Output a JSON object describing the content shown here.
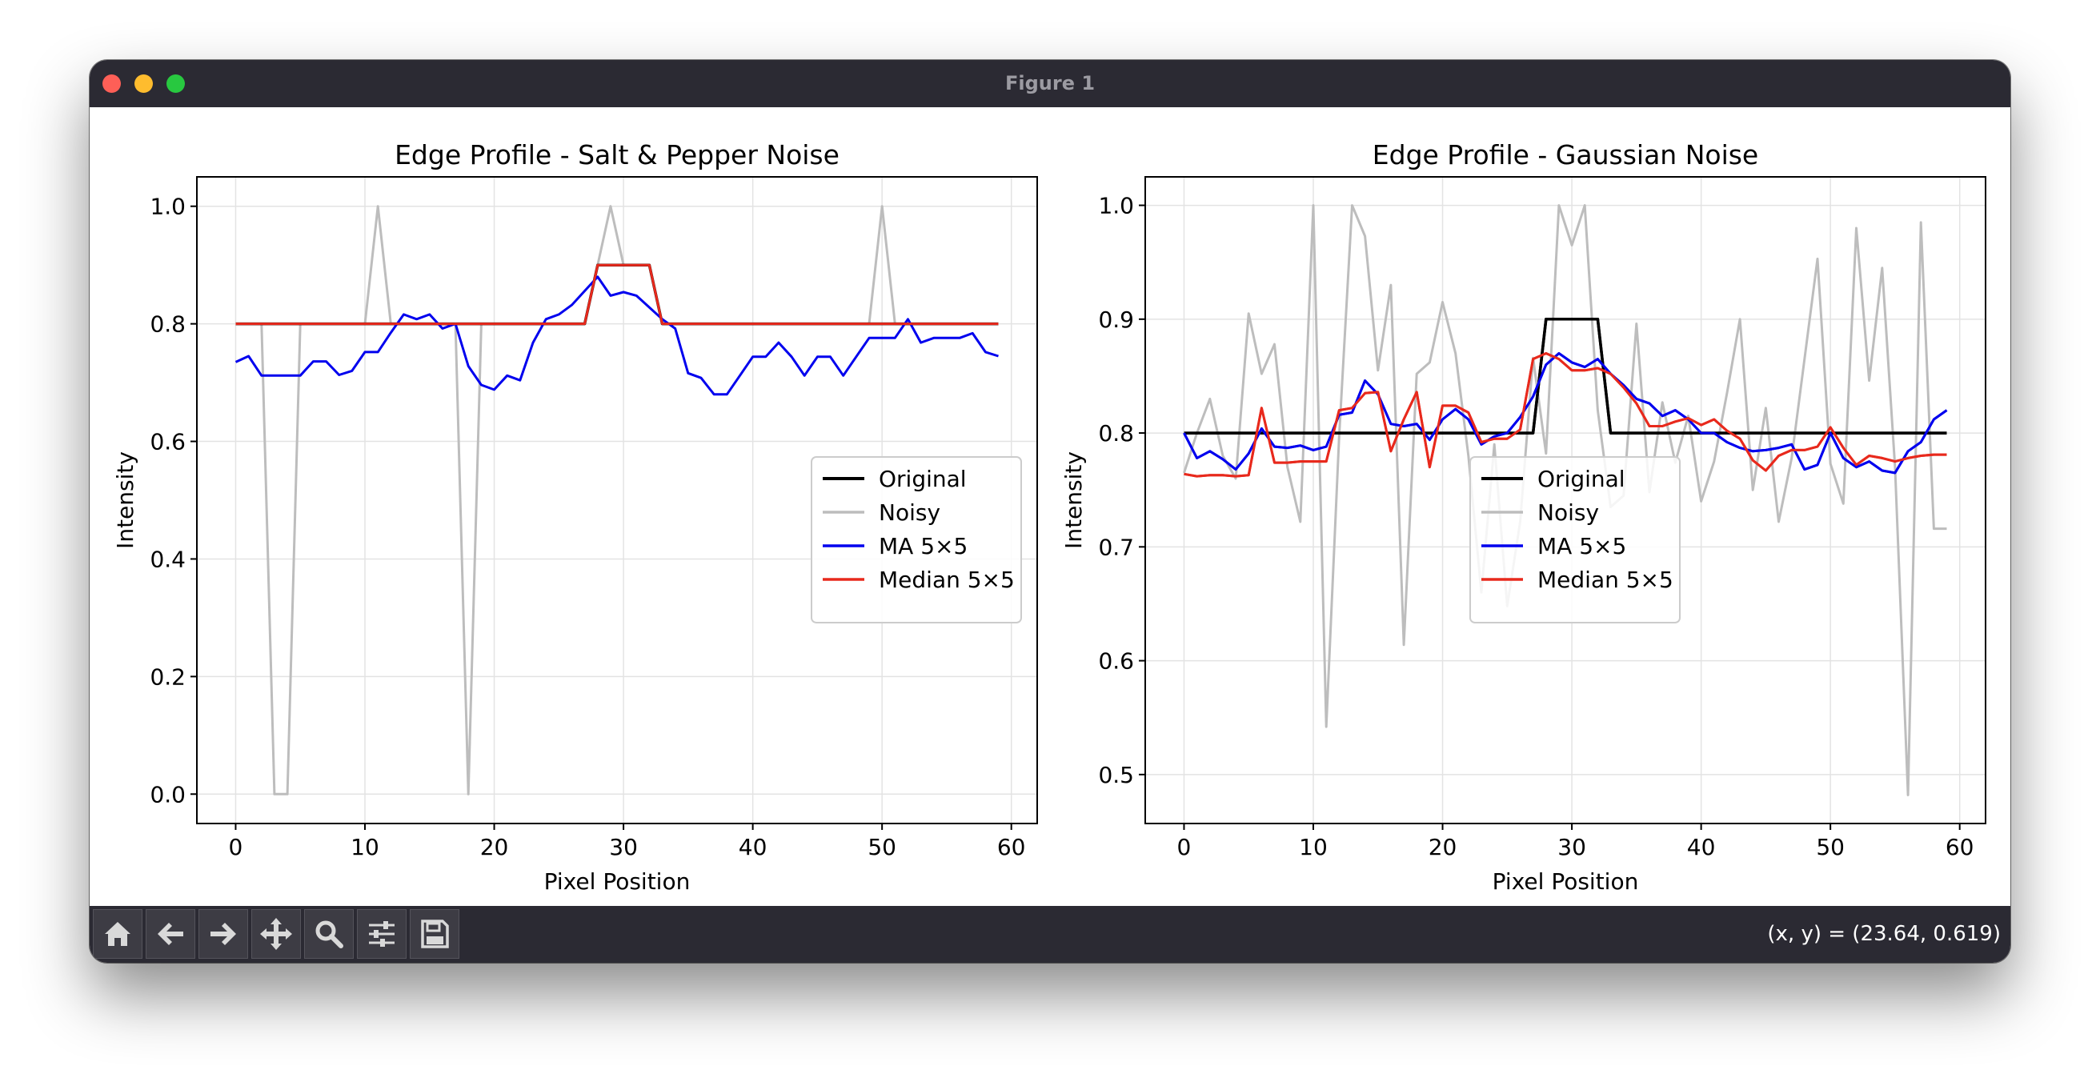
{
  "window": {
    "title": "Figure 1"
  },
  "status": {
    "coords": "(x, y) = (23.64, 0.619)"
  },
  "toolbar": {
    "buttons": [
      "home-icon",
      "back-arrow-icon",
      "forward-arrow-icon",
      "pan-move-icon",
      "zoom-magnifier-icon",
      "configure-sliders-icon",
      "save-floppy-icon"
    ]
  },
  "colors": {
    "original": "#000000",
    "noisy": "#bdbdbd",
    "ma": "#0000ee",
    "median": "#e8291c"
  },
  "chart_data": [
    {
      "type": "line",
      "title": "Edge Profile - Salt & Pepper Noise",
      "xlabel": "Pixel Position",
      "ylabel": "Intensity",
      "xlim": [
        -3,
        62
      ],
      "ylim": [
        -0.05,
        1.05
      ],
      "xticks": [
        0,
        10,
        20,
        30,
        40,
        50,
        60
      ],
      "yticks": [
        0.0,
        0.2,
        0.4,
        0.6,
        0.8,
        1.0
      ],
      "ytick_labels": [
        "0.0",
        "0.2",
        "0.4",
        "0.6",
        "0.8",
        "1.0"
      ],
      "grid": true,
      "legend_position": "lower right",
      "series": [
        {
          "name": "Original",
          "color": "#000000",
          "width": 3.5,
          "values": [
            0.8,
            0.8,
            0.8,
            0.8,
            0.8,
            0.8,
            0.8,
            0.8,
            0.8,
            0.8,
            0.8,
            0.8,
            0.8,
            0.8,
            0.8,
            0.8,
            0.8,
            0.8,
            0.8,
            0.8,
            0.8,
            0.8,
            0.8,
            0.8,
            0.8,
            0.8,
            0.8,
            0.8,
            0.9,
            0.9,
            0.9,
            0.9,
            0.9,
            0.8,
            0.8,
            0.8,
            0.8,
            0.8,
            0.8,
            0.8,
            0.8,
            0.8,
            0.8,
            0.8,
            0.8,
            0.8,
            0.8,
            0.8,
            0.8,
            0.8,
            0.8,
            0.8,
            0.8,
            0.8,
            0.8,
            0.8,
            0.8,
            0.8,
            0.8,
            0.8
          ]
        },
        {
          "name": "Noisy",
          "color": "#bdbdbd",
          "width": 3,
          "values": [
            0.8,
            0.8,
            0.8,
            0.0,
            0.0,
            0.8,
            0.8,
            0.8,
            0.8,
            0.8,
            0.8,
            1.0,
            0.8,
            0.8,
            0.8,
            0.8,
            0.8,
            0.8,
            0.0,
            0.8,
            0.8,
            0.8,
            0.8,
            0.8,
            0.8,
            0.8,
            0.8,
            0.8,
            0.9,
            1.0,
            0.9,
            0.9,
            0.9,
            0.8,
            0.8,
            0.8,
            0.8,
            0.8,
            0.8,
            0.8,
            0.8,
            0.8,
            0.8,
            0.8,
            0.8,
            0.8,
            0.8,
            0.8,
            0.8,
            0.8,
            1.0,
            0.8,
            0.8,
            0.8,
            0.8,
            0.8,
            0.8,
            0.8,
            0.8,
            0.8
          ]
        },
        {
          "name": "MA 5×5",
          "color": "#0000ee",
          "width": 3,
          "values": [
            0.735,
            0.745,
            0.712,
            0.712,
            0.712,
            0.712,
            0.736,
            0.736,
            0.713,
            0.72,
            0.752,
            0.752,
            0.785,
            0.816,
            0.808,
            0.816,
            0.792,
            0.8,
            0.728,
            0.696,
            0.688,
            0.712,
            0.704,
            0.768,
            0.808,
            0.816,
            0.832,
            0.856,
            0.88,
            0.848,
            0.854,
            0.848,
            0.828,
            0.808,
            0.792,
            0.716,
            0.708,
            0.68,
            0.68,
            0.712,
            0.744,
            0.744,
            0.768,
            0.744,
            0.712,
            0.744,
            0.744,
            0.712,
            0.744,
            0.776,
            0.776,
            0.776,
            0.808,
            0.768,
            0.776,
            0.776,
            0.776,
            0.784,
            0.752,
            0.745
          ]
        },
        {
          "name": "Median 5×5",
          "color": "#e8291c",
          "width": 3,
          "values": [
            0.8,
            0.8,
            0.8,
            0.8,
            0.8,
            0.8,
            0.8,
            0.8,
            0.8,
            0.8,
            0.8,
            0.8,
            0.8,
            0.8,
            0.8,
            0.8,
            0.8,
            0.8,
            0.8,
            0.8,
            0.8,
            0.8,
            0.8,
            0.8,
            0.8,
            0.8,
            0.8,
            0.8,
            0.9,
            0.9,
            0.9,
            0.9,
            0.9,
            0.8,
            0.8,
            0.8,
            0.8,
            0.8,
            0.8,
            0.8,
            0.8,
            0.8,
            0.8,
            0.8,
            0.8,
            0.8,
            0.8,
            0.8,
            0.8,
            0.8,
            0.8,
            0.8,
            0.8,
            0.8,
            0.8,
            0.8,
            0.8,
            0.8,
            0.8,
            0.8
          ]
        }
      ]
    },
    {
      "type": "line",
      "title": "Edge Profile - Gaussian Noise",
      "xlabel": "Pixel Position",
      "ylabel": "Intensity",
      "xlim": [
        -3,
        62
      ],
      "ylim": [
        0.457,
        1.025
      ],
      "xticks": [
        0,
        10,
        20,
        30,
        40,
        50,
        60
      ],
      "yticks": [
        0.5,
        0.6,
        0.7,
        0.8,
        0.9,
        1.0
      ],
      "ytick_labels": [
        "0.5",
        "0.6",
        "0.7",
        "0.8",
        "0.9",
        "1.0"
      ],
      "grid": true,
      "legend_position": "lower center",
      "series": [
        {
          "name": "Original",
          "color": "#000000",
          "width": 3.5,
          "values": [
            0.8,
            0.8,
            0.8,
            0.8,
            0.8,
            0.8,
            0.8,
            0.8,
            0.8,
            0.8,
            0.8,
            0.8,
            0.8,
            0.8,
            0.8,
            0.8,
            0.8,
            0.8,
            0.8,
            0.8,
            0.8,
            0.8,
            0.8,
            0.8,
            0.8,
            0.8,
            0.8,
            0.8,
            0.9,
            0.9,
            0.9,
            0.9,
            0.9,
            0.8,
            0.8,
            0.8,
            0.8,
            0.8,
            0.8,
            0.8,
            0.8,
            0.8,
            0.8,
            0.8,
            0.8,
            0.8,
            0.8,
            0.8,
            0.8,
            0.8,
            0.8,
            0.8,
            0.8,
            0.8,
            0.8,
            0.8,
            0.8,
            0.8,
            0.8,
            0.8
          ]
        },
        {
          "name": "Noisy",
          "color": "#bdbdbd",
          "width": 3,
          "values": [
            0.765,
            0.8,
            0.83,
            0.78,
            0.76,
            0.905,
            0.852,
            0.878,
            0.77,
            0.722,
            1.0,
            0.542,
            0.797,
            1.0,
            0.973,
            0.855,
            0.93,
            0.614,
            0.852,
            0.862,
            0.915,
            0.87,
            0.78,
            0.66,
            0.79,
            0.648,
            0.722,
            0.866,
            0.782,
            1.0,
            0.965,
            1.0,
            0.82,
            0.735,
            0.745,
            0.896,
            0.748,
            0.827,
            0.774,
            0.815,
            0.74,
            0.775,
            0.835,
            0.9,
            0.75,
            0.822,
            0.722,
            0.778,
            0.865,
            0.953,
            0.773,
            0.738,
            0.98,
            0.846,
            0.945,
            0.77,
            0.482,
            0.985,
            0.716,
            0.716
          ]
        },
        {
          "name": "MA 5×5",
          "color": "#0000ee",
          "width": 3,
          "values": [
            0.8,
            0.778,
            0.784,
            0.777,
            0.768,
            0.782,
            0.804,
            0.788,
            0.787,
            0.789,
            0.785,
            0.788,
            0.816,
            0.818,
            0.846,
            0.834,
            0.808,
            0.806,
            0.808,
            0.794,
            0.812,
            0.821,
            0.812,
            0.79,
            0.797,
            0.8,
            0.814,
            0.832,
            0.86,
            0.87,
            0.862,
            0.858,
            0.865,
            0.852,
            0.842,
            0.83,
            0.826,
            0.815,
            0.82,
            0.812,
            0.8,
            0.8,
            0.792,
            0.787,
            0.784,
            0.785,
            0.787,
            0.79,
            0.768,
            0.772,
            0.8,
            0.778,
            0.77,
            0.775,
            0.767,
            0.765,
            0.784,
            0.792,
            0.812,
            0.82
          ]
        },
        {
          "name": "Median 5×5",
          "color": "#e8291c",
          "width": 3,
          "values": [
            0.764,
            0.762,
            0.763,
            0.763,
            0.762,
            0.763,
            0.822,
            0.774,
            0.774,
            0.775,
            0.775,
            0.775,
            0.82,
            0.822,
            0.835,
            0.836,
            0.784,
            0.812,
            0.836,
            0.77,
            0.824,
            0.824,
            0.818,
            0.792,
            0.795,
            0.795,
            0.803,
            0.865,
            0.87,
            0.865,
            0.855,
            0.855,
            0.857,
            0.852,
            0.84,
            0.826,
            0.806,
            0.806,
            0.81,
            0.813,
            0.807,
            0.812,
            0.802,
            0.795,
            0.776,
            0.767,
            0.78,
            0.785,
            0.785,
            0.788,
            0.805,
            0.787,
            0.772,
            0.78,
            0.778,
            0.775,
            0.778,
            0.78,
            0.781,
            0.781
          ]
        }
      ]
    }
  ]
}
